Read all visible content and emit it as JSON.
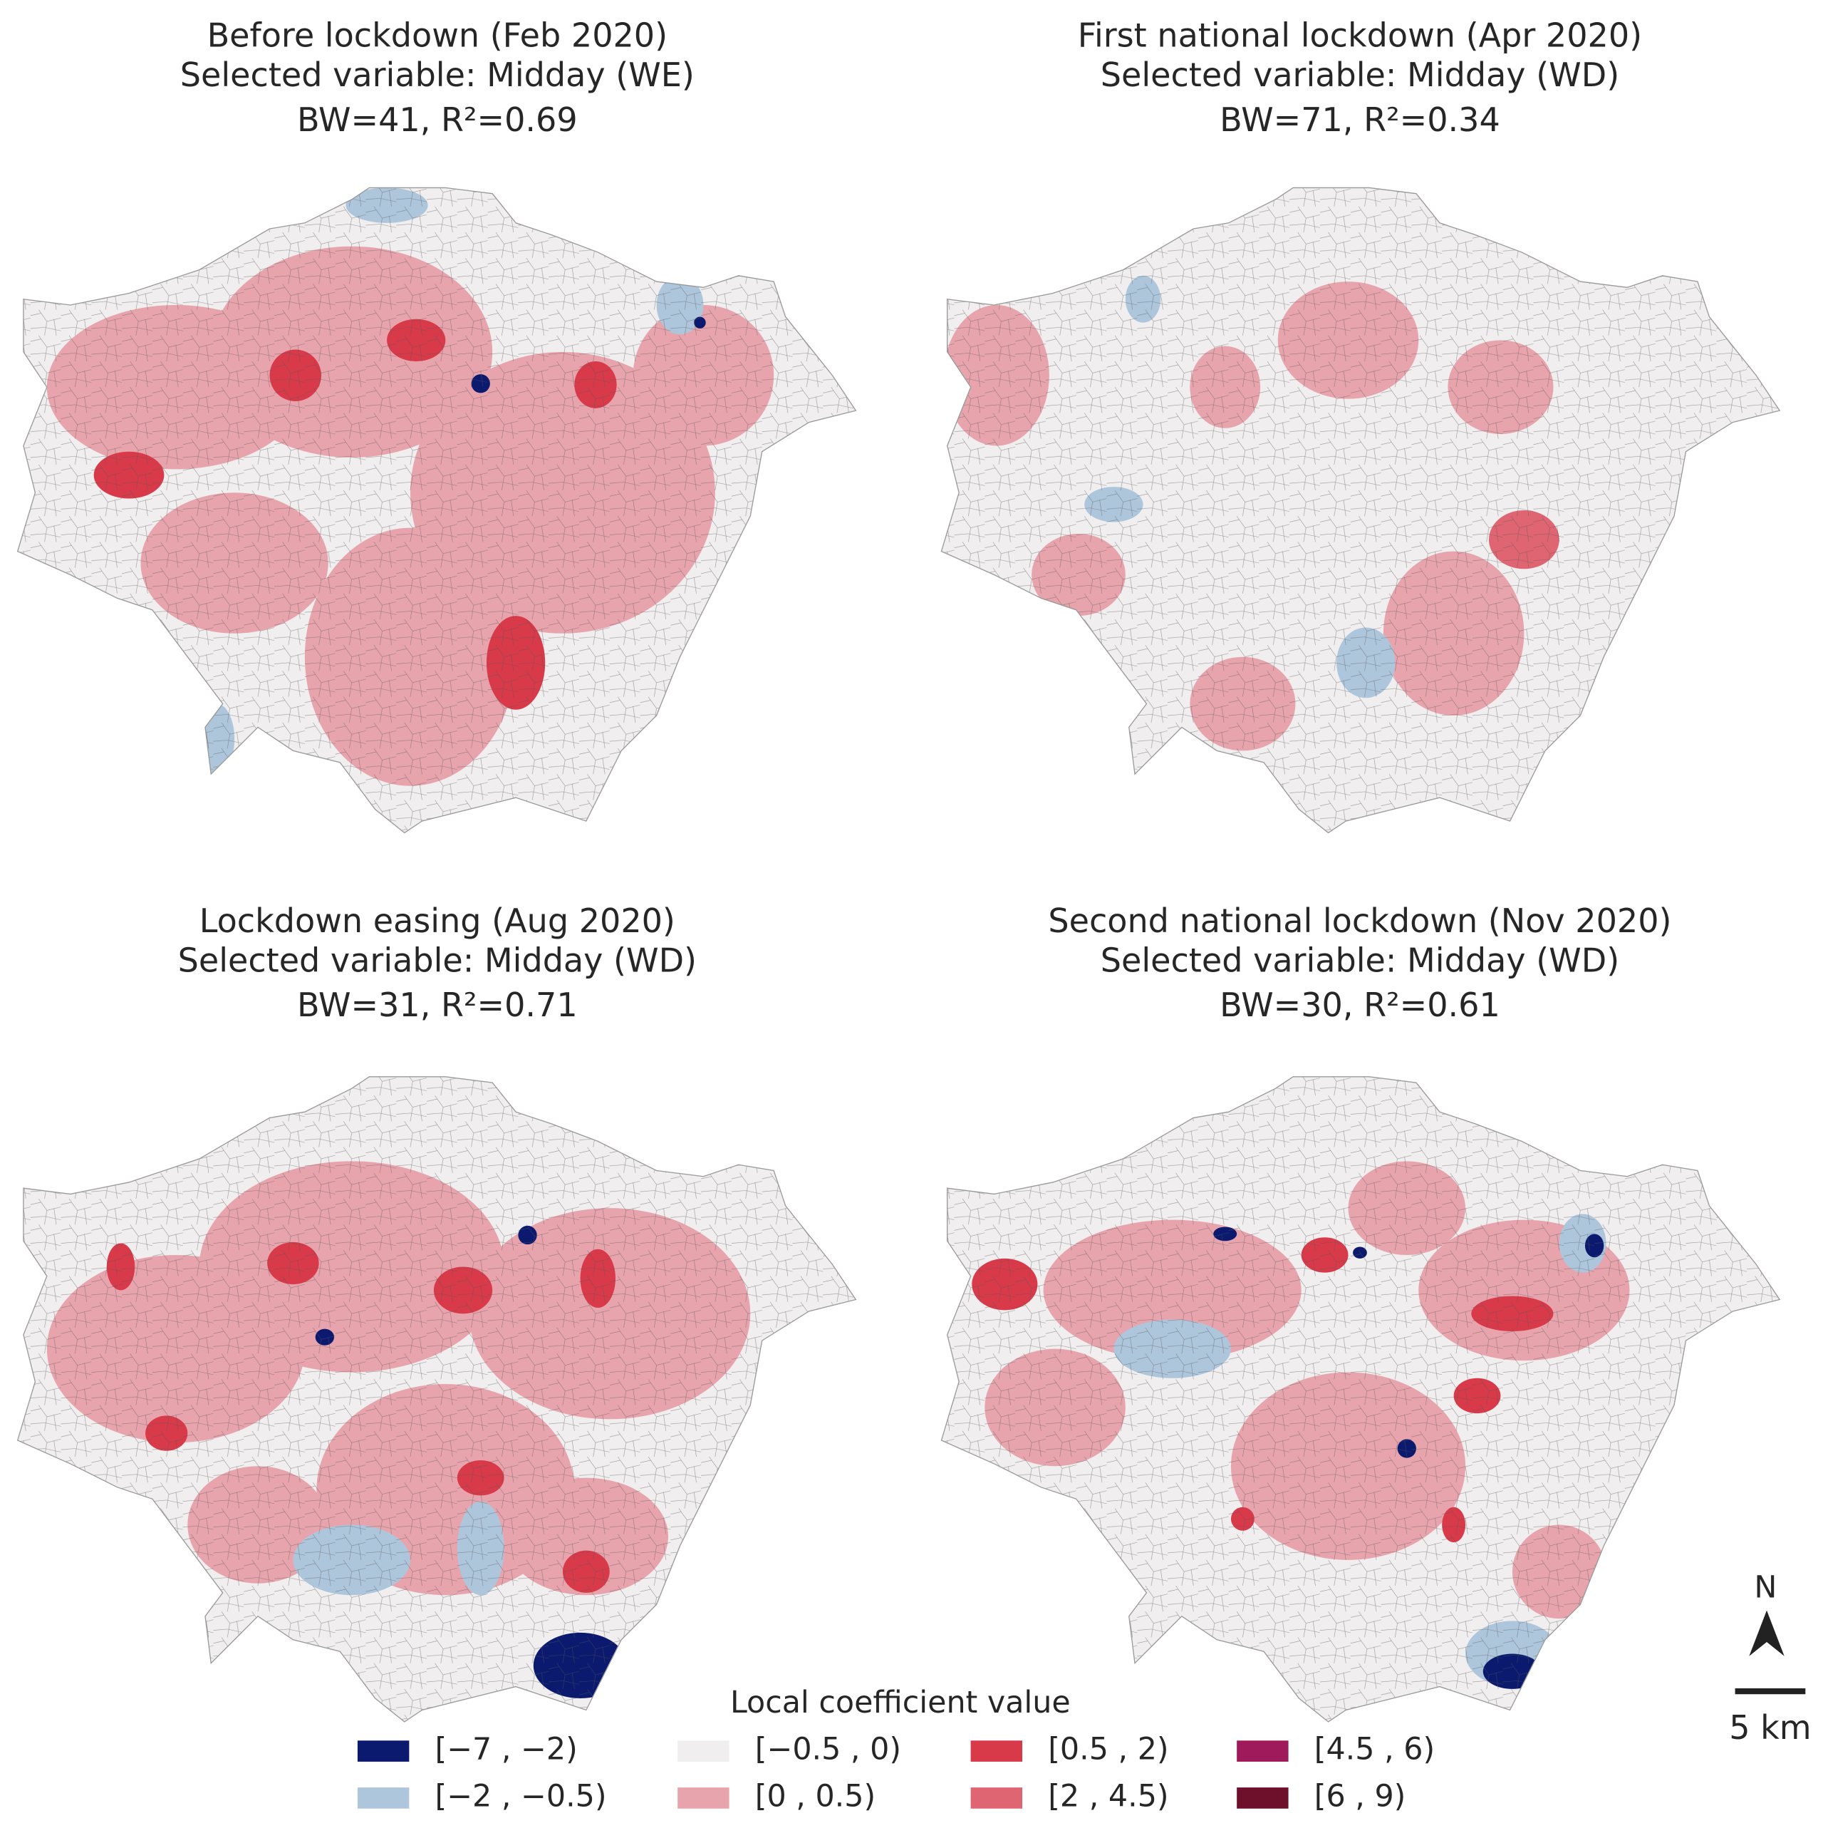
{
  "panels": [
    {
      "title_lines": [
        "Before lockdown (Feb 2020)",
        "Selected variable: Midday (WE)",
        "BW=41, R²=0.69"
      ]
    },
    {
      "title_lines": [
        "First national lockdown (Apr 2020)",
        "Selected variable: Midday (WD)",
        "BW=71, R²=0.34"
      ]
    },
    {
      "title_lines": [
        "Lockdown easing (Aug 2020)",
        "Selected variable: Midday (WD)",
        "BW=31, R²=0.71"
      ]
    },
    {
      "title_lines": [
        "Second national lockdown (Nov 2020)",
        "Selected variable: Midday (WD)",
        "BW=30, R²=0.61"
      ]
    }
  ],
  "legend": {
    "title": "Local coefficient value",
    "entries": [
      {
        "label": "[−7 , −2)",
        "color": "#0b1a6e"
      },
      {
        "label": "[−2 , −0.5)",
        "color": "#aec6dc"
      },
      {
        "label": "[−0.5 , 0)",
        "color": "#f0eeee"
      },
      {
        "label": "[0 , 0.5)",
        "color": "#e8a4ad"
      },
      {
        "label": "[0.5 , 2)",
        "color": "#d83a4a"
      },
      {
        "label": "[2 , 4.5)",
        "color": "#e06572"
      },
      {
        "label": "[4.5 , 6)",
        "color": "#9e1a5a"
      },
      {
        "label": "[6 , 9)",
        "color": "#6e0f2c"
      }
    ]
  },
  "north_label": "N",
  "scale_label": "5 km"
}
